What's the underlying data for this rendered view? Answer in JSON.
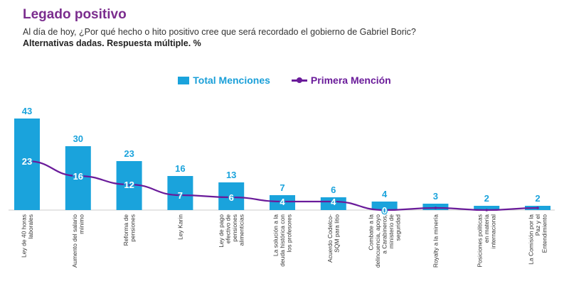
{
  "header": {
    "title": "Legado positivo",
    "subtitle": "Al día de hoy, ¿Por qué hecho o hito positivo cree que será recordado el gobierno de Gabriel Boric?",
    "note": "Alternativas dadas. Respuesta múltiple. %"
  },
  "colors": {
    "title": "#7b2d8e",
    "bar": "#1aa3dc",
    "line": "#6a1b9a"
  },
  "chart_data": {
    "type": "bar",
    "title": "",
    "xlabel": "",
    "ylabel": "",
    "ylim": [
      0,
      43
    ],
    "grid": false,
    "legend_position": "top-center",
    "categories": [
      [
        "Ley de 40 horas",
        "laborales"
      ],
      [
        "Aumento del salario",
        "mínimo"
      ],
      [
        "Reforma de",
        "pensiones"
      ],
      [
        "Ley Karin"
      ],
      [
        "Ley de pago",
        "efectivo de",
        "pensiones",
        "alimenticias"
      ],
      [
        "La solución a la",
        "deuda histórica con",
        "los profesores"
      ],
      [
        "Acuerdo Codelco-",
        "SQM para litio"
      ],
      [
        "Combate a la",
        "delincuencia, apoyo",
        "a Carabineros,",
        "ministerio de",
        "seguridad"
      ],
      [
        "Royalty a la minería"
      ],
      [
        "Posiciones políticas",
        "en materia",
        "internacional"
      ],
      [
        "La Comisión por la",
        "Paz y el",
        "Entendimiento"
      ]
    ],
    "series": [
      {
        "name": "Total Menciones",
        "type": "bar",
        "values": [
          43,
          30,
          23,
          16,
          13,
          7,
          6,
          4,
          3,
          2,
          2
        ]
      },
      {
        "name": "Primera Mención",
        "type": "line",
        "values": [
          23,
          16,
          12,
          7,
          6,
          4,
          4,
          0,
          1,
          0,
          1
        ],
        "labels": [
          "23",
          "16",
          "12",
          "7",
          "6",
          "4",
          "4",
          "0",
          "",
          "",
          ""
        ]
      }
    ]
  }
}
